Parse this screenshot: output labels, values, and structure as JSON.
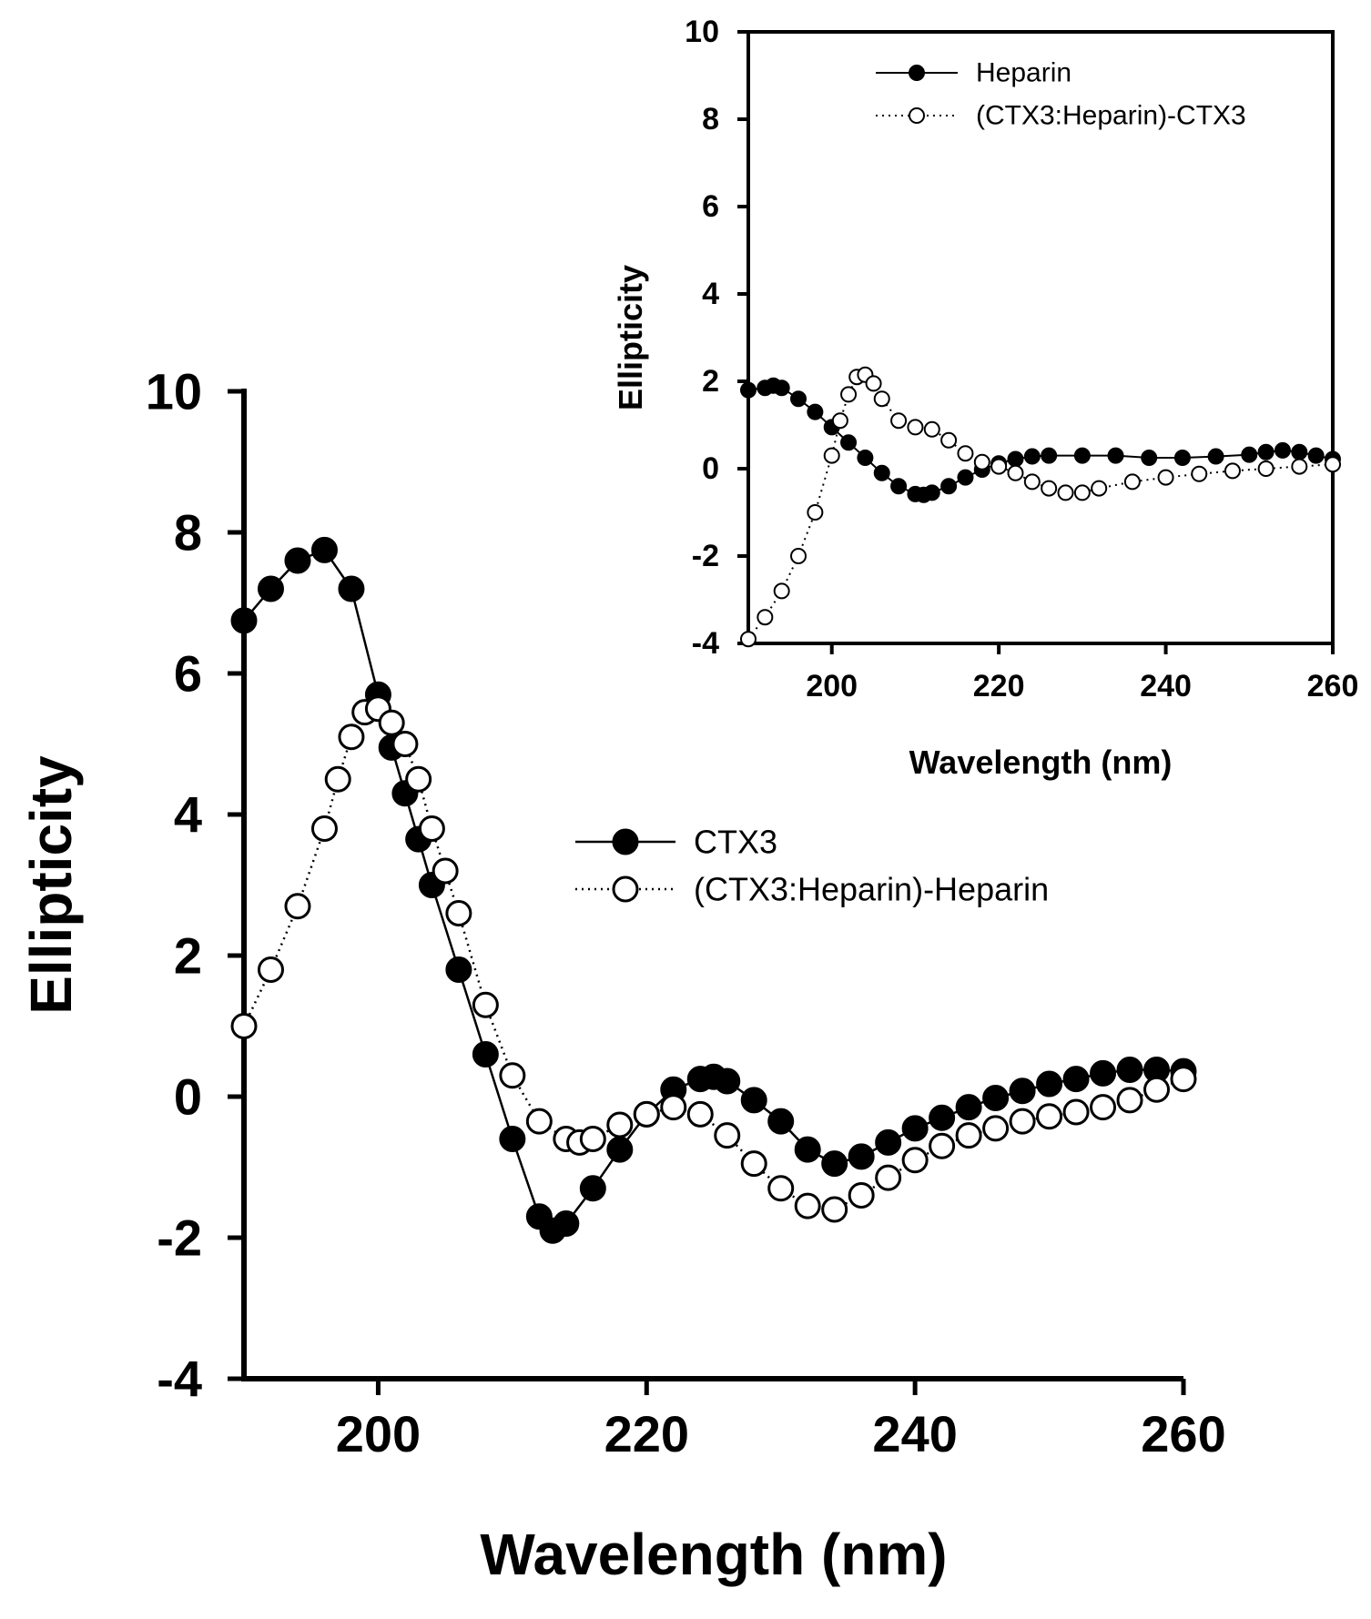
{
  "chart_data": [
    {
      "id": "main",
      "type": "scatter",
      "xlabel": "Wavelength (nm)",
      "ylabel": "Ellipticity",
      "xlim": [
        190,
        260
      ],
      "ylim": [
        -4,
        10
      ],
      "xticks": [
        200,
        220,
        240,
        260
      ],
      "yticks": [
        -4,
        -2,
        0,
        2,
        4,
        6,
        8,
        10
      ],
      "grid": false,
      "legend_position": "center-right",
      "series": [
        {
          "name": "CTX3",
          "marker": "filled-circle",
          "line": "solid",
          "color": "#000000",
          "x": [
            190,
            192,
            194,
            196,
            198,
            200,
            201,
            202,
            203,
            204,
            206,
            208,
            210,
            212,
            213,
            214,
            216,
            218,
            220,
            222,
            224,
            225,
            226,
            228,
            230,
            232,
            234,
            236,
            238,
            240,
            242,
            244,
            246,
            248,
            250,
            252,
            254,
            256,
            258,
            260
          ],
          "y": [
            6.75,
            7.2,
            7.6,
            7.75,
            7.2,
            5.7,
            4.95,
            4.3,
            3.65,
            3.0,
            1.8,
            0.6,
            -0.6,
            -1.7,
            -1.9,
            -1.8,
            -1.3,
            -0.75,
            -0.25,
            0.1,
            0.25,
            0.28,
            0.22,
            -0.05,
            -0.35,
            -0.75,
            -0.95,
            -0.85,
            -0.65,
            -0.45,
            -0.3,
            -0.15,
            -0.02,
            0.08,
            0.18,
            0.25,
            0.33,
            0.38,
            0.38,
            0.36
          ]
        },
        {
          "name": "(CTX3:Heparin)-Heparin",
          "marker": "open-circle",
          "line": "dotted",
          "color": "#000000",
          "x": [
            190,
            192,
            194,
            196,
            197,
            198,
            199,
            200,
            201,
            202,
            203,
            204,
            205,
            206,
            208,
            210,
            212,
            214,
            215,
            216,
            218,
            220,
            222,
            224,
            226,
            228,
            230,
            232,
            234,
            236,
            238,
            240,
            242,
            244,
            246,
            248,
            250,
            252,
            254,
            256,
            258,
            260
          ],
          "y": [
            1.0,
            1.8,
            2.7,
            3.8,
            4.5,
            5.1,
            5.45,
            5.5,
            5.3,
            5.0,
            4.5,
            3.8,
            3.2,
            2.6,
            1.3,
            0.3,
            -0.35,
            -0.6,
            -0.65,
            -0.6,
            -0.4,
            -0.25,
            -0.15,
            -0.25,
            -0.55,
            -0.95,
            -1.3,
            -1.55,
            -1.6,
            -1.4,
            -1.15,
            -0.9,
            -0.7,
            -0.55,
            -0.45,
            -0.35,
            -0.28,
            -0.22,
            -0.15,
            -0.05,
            0.1,
            0.25
          ]
        }
      ]
    },
    {
      "id": "inset",
      "type": "scatter",
      "xlabel": "Wavelength (nm)",
      "ylabel": "Ellipticity",
      "xlim": [
        190,
        260
      ],
      "ylim": [
        -4,
        10
      ],
      "xticks": [
        200,
        220,
        240,
        260
      ],
      "yticks": [
        -4,
        -2,
        0,
        2,
        4,
        6,
        8,
        10
      ],
      "grid": false,
      "legend_position": "top-center",
      "series": [
        {
          "name": "Heparin",
          "marker": "filled-circle",
          "line": "solid",
          "color": "#000000",
          "x": [
            190,
            192,
            193,
            194,
            196,
            198,
            200,
            202,
            204,
            206,
            208,
            210,
            211,
            212,
            214,
            216,
            218,
            220,
            222,
            224,
            226,
            230,
            234,
            238,
            242,
            246,
            250,
            252,
            254,
            256,
            258,
            260
          ],
          "y": [
            1.8,
            1.85,
            1.9,
            1.85,
            1.6,
            1.3,
            0.95,
            0.6,
            0.25,
            -0.1,
            -0.4,
            -0.58,
            -0.6,
            -0.55,
            -0.4,
            -0.2,
            -0.02,
            0.12,
            0.22,
            0.28,
            0.3,
            0.3,
            0.3,
            0.25,
            0.25,
            0.28,
            0.32,
            0.38,
            0.42,
            0.38,
            0.3,
            0.22
          ]
        },
        {
          "name": "(CTX3:Heparin)-CTX3",
          "marker": "open-circle",
          "line": "dotted",
          "color": "#000000",
          "x": [
            190,
            192,
            194,
            196,
            198,
            200,
            201,
            202,
            203,
            204,
            205,
            206,
            208,
            210,
            212,
            214,
            216,
            218,
            220,
            222,
            224,
            226,
            228,
            230,
            232,
            236,
            240,
            244,
            248,
            252,
            256,
            260
          ],
          "y": [
            -3.9,
            -3.4,
            -2.8,
            -2.0,
            -1.0,
            0.3,
            1.1,
            1.7,
            2.1,
            2.15,
            1.95,
            1.6,
            1.1,
            0.95,
            0.9,
            0.65,
            0.35,
            0.15,
            0.05,
            -0.1,
            -0.3,
            -0.45,
            -0.55,
            -0.55,
            -0.45,
            -0.3,
            -0.2,
            -0.12,
            -0.05,
            0.0,
            0.05,
            0.1
          ]
        }
      ]
    }
  ]
}
